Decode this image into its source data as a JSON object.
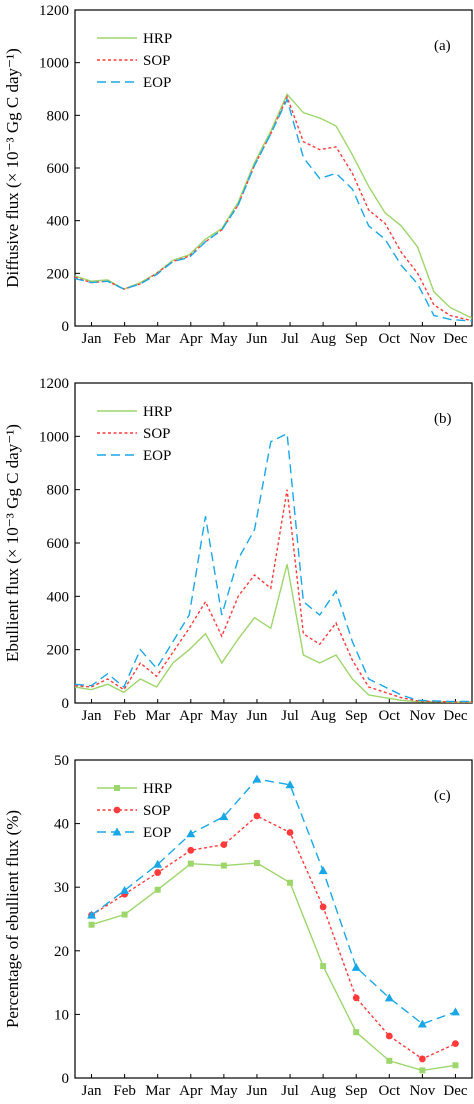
{
  "months": [
    "Jan",
    "Feb",
    "Mar",
    "Apr",
    "May",
    "Jun",
    "Jul",
    "Aug",
    "Sep",
    "Oct",
    "Nov",
    "Dec"
  ],
  "styles": {
    "HRP": {
      "color": "#9dd66b",
      "dash": "",
      "marker": "square"
    },
    "SOP": {
      "color": "#ff3b3b",
      "dash": "3,2.5",
      "marker": "circle"
    },
    "EOP": {
      "color": "#1aa7e8",
      "dash": "9,5",
      "marker": "triangle"
    }
  },
  "chart_data": [
    {
      "type": "line",
      "panel_label": "(a)",
      "ylabel": "Diffusive flux (× 10⁻³ Gg C day⁻¹)",
      "ylim": [
        0,
        1200
      ],
      "yticks": [
        0,
        200,
        400,
        600,
        800,
        1000,
        1200
      ],
      "xlim": [
        0,
        365
      ],
      "legend": [
        "HRP",
        "SOP",
        "EOP"
      ],
      "series": [
        {
          "name": "HRP",
          "x": [
            0,
            15,
            30,
            45,
            60,
            75,
            90,
            105,
            120,
            135,
            150,
            165,
            180,
            195,
            210,
            225,
            240,
            255,
            270,
            285,
            300,
            315,
            330,
            345,
            360,
            365
          ],
          "y": [
            190,
            170,
            175,
            140,
            165,
            200,
            250,
            270,
            330,
            370,
            470,
            620,
            740,
            880,
            810,
            790,
            760,
            650,
            530,
            430,
            380,
            300,
            130,
            70,
            40,
            30
          ]
        },
        {
          "name": "SOP",
          "x": [
            0,
            15,
            30,
            45,
            60,
            75,
            90,
            105,
            120,
            135,
            150,
            165,
            180,
            195,
            210,
            225,
            240,
            255,
            270,
            285,
            300,
            315,
            330,
            345,
            360,
            365
          ],
          "y": [
            185,
            165,
            170,
            140,
            160,
            200,
            245,
            265,
            320,
            365,
            460,
            610,
            730,
            870,
            700,
            670,
            680,
            580,
            440,
            390,
            280,
            200,
            80,
            40,
            25,
            20
          ]
        },
        {
          "name": "EOP",
          "x": [
            0,
            15,
            30,
            45,
            60,
            75,
            90,
            105,
            120,
            135,
            150,
            165,
            180,
            195,
            210,
            225,
            240,
            255,
            270,
            285,
            300,
            315,
            330,
            345,
            360,
            365
          ],
          "y": [
            180,
            165,
            170,
            140,
            160,
            195,
            245,
            260,
            320,
            365,
            460,
            610,
            730,
            860,
            640,
            560,
            580,
            520,
            380,
            330,
            230,
            160,
            40,
            25,
            20,
            20
          ]
        }
      ],
      "xticklabels": [
        "Jan",
        "Feb",
        "Mar",
        "Apr",
        "May",
        "Jun",
        "Jul",
        "Aug",
        "Sep",
        "Oct",
        "Nov",
        "Dec"
      ]
    },
    {
      "type": "line",
      "panel_label": "(b)",
      "ylabel": "Ebullient flux (× 10⁻³ Gg C day⁻¹)",
      "ylim": [
        0,
        1200
      ],
      "yticks": [
        0,
        200,
        400,
        600,
        800,
        1000,
        1200
      ],
      "xlim": [
        0,
        365
      ],
      "legend": [
        "HRP",
        "SOP",
        "EOP"
      ],
      "series": [
        {
          "name": "HRP",
          "x": [
            0,
            15,
            30,
            45,
            60,
            75,
            90,
            105,
            120,
            135,
            150,
            165,
            180,
            195,
            210,
            225,
            240,
            255,
            270,
            285,
            300,
            315,
            330,
            345,
            360,
            365
          ],
          "y": [
            60,
            50,
            70,
            40,
            90,
            60,
            150,
            200,
            260,
            150,
            240,
            320,
            280,
            520,
            180,
            150,
            180,
            90,
            30,
            20,
            10,
            5,
            5,
            3,
            3,
            3
          ]
        },
        {
          "name": "SOP",
          "x": [
            0,
            15,
            30,
            45,
            60,
            75,
            90,
            105,
            120,
            135,
            150,
            165,
            180,
            195,
            210,
            225,
            240,
            255,
            270,
            285,
            300,
            315,
            330,
            345,
            360,
            365
          ],
          "y": [
            65,
            60,
            90,
            50,
            150,
            100,
            190,
            280,
            380,
            250,
            400,
            480,
            430,
            800,
            260,
            220,
            300,
            160,
            60,
            40,
            20,
            8,
            6,
            4,
            4,
            4
          ]
        },
        {
          "name": "EOP",
          "x": [
            0,
            15,
            30,
            45,
            60,
            75,
            90,
            105,
            120,
            135,
            150,
            165,
            180,
            195,
            210,
            225,
            240,
            255,
            270,
            285,
            300,
            315,
            330,
            345,
            360,
            365
          ],
          "y": [
            70,
            65,
            110,
            60,
            200,
            130,
            230,
            330,
            700,
            330,
            540,
            650,
            980,
            1010,
            380,
            330,
            420,
            230,
            90,
            60,
            30,
            10,
            8,
            6,
            6,
            6
          ]
        }
      ],
      "xticklabels": [
        "Jan",
        "Feb",
        "Mar",
        "Apr",
        "May",
        "Jun",
        "Jul",
        "Aug",
        "Sep",
        "Oct",
        "Nov",
        "Dec"
      ]
    },
    {
      "type": "line",
      "panel_label": "(c)",
      "ylabel": "Percentage of ebullient flux (%)",
      "ylim": [
        0,
        50
      ],
      "yticks": [
        0,
        10,
        20,
        30,
        40,
        50
      ],
      "categories": [
        "Jan",
        "Feb",
        "Mar",
        "Apr",
        "May",
        "Jun",
        "Jul",
        "Aug",
        "Sep",
        "Oct",
        "Nov",
        "Dec"
      ],
      "legend": [
        "HRP",
        "SOP",
        "EOP"
      ],
      "series": [
        {
          "name": "HRP",
          "values": [
            24.1,
            25.7,
            29.6,
            33.7,
            33.4,
            33.8,
            30.7,
            17.6,
            7.2,
            2.7,
            1.2,
            2.0
          ]
        },
        {
          "name": "SOP",
          "values": [
            25.6,
            28.9,
            32.3,
            35.8,
            36.7,
            41.2,
            38.6,
            26.9,
            12.6,
            6.6,
            3.0,
            5.4
          ]
        },
        {
          "name": "EOP",
          "values": [
            25.6,
            29.5,
            33.6,
            38.4,
            41.1,
            47.0,
            46.1,
            32.6,
            17.4,
            12.6,
            8.5,
            10.4
          ]
        }
      ]
    }
  ]
}
